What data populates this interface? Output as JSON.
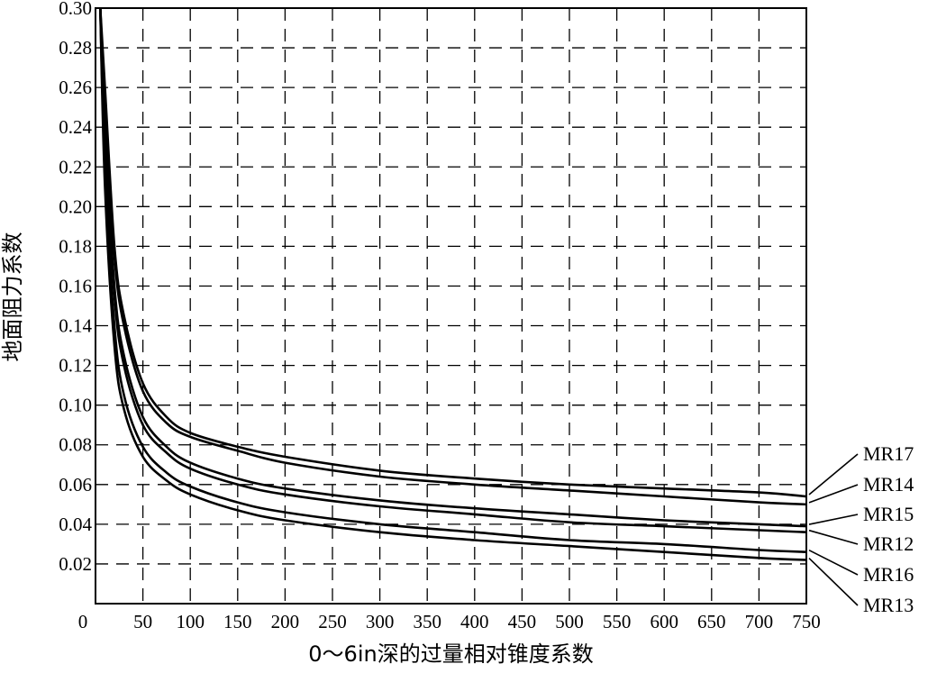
{
  "chart_data": {
    "type": "line",
    "xlabel": "0～6in深的过量相对锥度系数",
    "ylabel": "地面阻力系数",
    "xlim": [
      0,
      750
    ],
    "ylim": [
      0,
      0.3
    ],
    "grid": "dashed",
    "x_ticks": [
      "0",
      "50",
      "100",
      "150",
      "200",
      "250",
      "300",
      "350",
      "400",
      "450",
      "500",
      "550",
      "600",
      "650",
      "700",
      "750"
    ],
    "y_ticks": [
      "0.02",
      "0.04",
      "0.06",
      "0.08",
      "0.10",
      "0.12",
      "0.14",
      "0.16",
      "0.18",
      "0.20",
      "0.22",
      "0.24",
      "0.26",
      "0.28",
      "0.30"
    ],
    "legend_placement": "right, labels at curve ends",
    "series": [
      {
        "name": "MR17",
        "x": [
          5,
          10,
          20,
          30,
          50,
          75,
          100,
          150,
          200,
          300,
          400,
          500,
          600,
          700,
          750
        ],
        "values": [
          0.3,
          0.26,
          0.18,
          0.145,
          0.111,
          0.094,
          0.086,
          0.079,
          0.074,
          0.067,
          0.063,
          0.06,
          0.058,
          0.056,
          0.054
        ]
      },
      {
        "name": "MR14",
        "x": [
          5,
          10,
          20,
          30,
          50,
          75,
          100,
          150,
          200,
          300,
          400,
          500,
          600,
          700,
          750
        ],
        "values": [
          0.3,
          0.25,
          0.175,
          0.14,
          0.107,
          0.091,
          0.084,
          0.077,
          0.071,
          0.064,
          0.06,
          0.057,
          0.054,
          0.051,
          0.05
        ]
      },
      {
        "name": "MR15",
        "x": [
          5,
          10,
          20,
          30,
          50,
          75,
          100,
          150,
          200,
          300,
          400,
          500,
          600,
          700,
          750
        ],
        "values": [
          0.3,
          0.24,
          0.16,
          0.125,
          0.094,
          0.079,
          0.071,
          0.063,
          0.058,
          0.052,
          0.048,
          0.045,
          0.042,
          0.04,
          0.039
        ]
      },
      {
        "name": "MR12",
        "x": [
          5,
          10,
          20,
          30,
          50,
          75,
          100,
          150,
          200,
          300,
          400,
          500,
          600,
          700,
          750
        ],
        "values": [
          0.3,
          0.235,
          0.155,
          0.12,
          0.09,
          0.076,
          0.068,
          0.06,
          0.055,
          0.049,
          0.045,
          0.041,
          0.039,
          0.037,
          0.036
        ]
      },
      {
        "name": "MR16",
        "x": [
          5,
          10,
          20,
          30,
          50,
          75,
          100,
          150,
          200,
          300,
          400,
          500,
          600,
          700,
          750
        ],
        "values": [
          0.3,
          0.22,
          0.14,
          0.105,
          0.079,
          0.066,
          0.059,
          0.051,
          0.046,
          0.04,
          0.036,
          0.032,
          0.03,
          0.027,
          0.026
        ]
      },
      {
        "name": "MR13",
        "x": [
          5,
          10,
          20,
          30,
          50,
          75,
          100,
          150,
          200,
          300,
          400,
          500,
          600,
          700,
          750
        ],
        "values": [
          0.3,
          0.21,
          0.13,
          0.098,
          0.074,
          0.062,
          0.055,
          0.047,
          0.042,
          0.036,
          0.032,
          0.029,
          0.026,
          0.023,
          0.022
        ]
      }
    ]
  }
}
